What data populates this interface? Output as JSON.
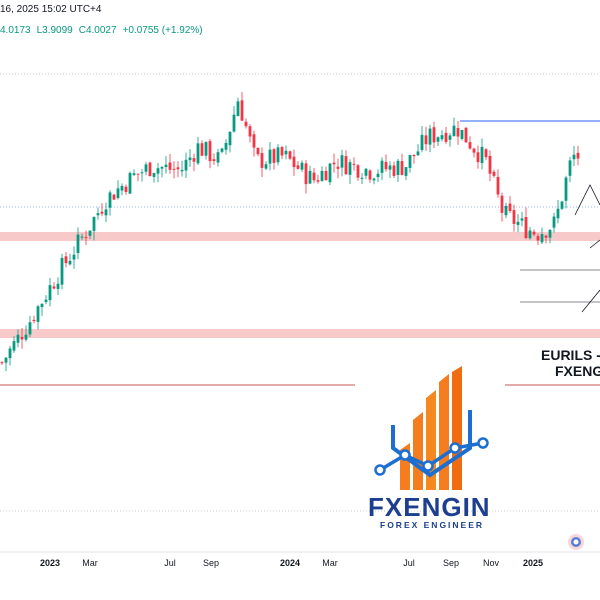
{
  "header": {
    "datetime": "16, 2025 15:02 UTC+4",
    "high": "4.0173",
    "low": "L3.9099",
    "close": "C4.0027",
    "change": "+0.0755 (+1.92%)"
  },
  "annotation": {
    "pair_line1": "EURILS -",
    "pair_line2": "FXENG"
  },
  "logo": {
    "brand": "FXENGIN",
    "tagline": "FOREX ENGINEER"
  },
  "colors": {
    "up": "#089981",
    "down": "#f23645",
    "zone": "#f7c9c9",
    "blue_line": "#2962ff",
    "red_line": "#b71c1c",
    "logo_orange": "#f57c1f",
    "logo_blue": "#1c6fd1",
    "logo_navy": "#1c3f8f"
  },
  "chart_data": {
    "type": "candlestick",
    "x_labels": [
      {
        "text": "2023",
        "bold": true
      },
      {
        "text": "Mar",
        "bold": false
      },
      {
        "text": "Jul",
        "bold": false
      },
      {
        "text": "Sep",
        "bold": false
      },
      {
        "text": "2024",
        "bold": true
      },
      {
        "text": "Mar",
        "bold": false
      },
      {
        "text": "Jul",
        "bold": false
      },
      {
        "text": "Sep",
        "bold": false
      },
      {
        "text": "Nov",
        "bold": false
      },
      {
        "text": "2025",
        "bold": true
      }
    ],
    "close_path": [
      {
        "t": 0.0,
        "p": 3.57
      },
      {
        "t": 0.05,
        "p": 3.66
      },
      {
        "t": 0.1,
        "p": 3.76
      },
      {
        "t": 0.15,
        "p": 3.85
      },
      {
        "t": 0.18,
        "p": 3.91
      },
      {
        "t": 0.23,
        "p": 3.96
      },
      {
        "t": 0.26,
        "p": 3.98
      },
      {
        "t": 0.31,
        "p": 3.97
      },
      {
        "t": 0.34,
        "p": 4.02
      },
      {
        "t": 0.38,
        "p": 3.99
      },
      {
        "t": 0.41,
        "p": 4.12
      },
      {
        "t": 0.44,
        "p": 3.99
      },
      {
        "t": 0.49,
        "p": 4.0
      },
      {
        "t": 0.54,
        "p": 3.95
      },
      {
        "t": 0.58,
        "p": 3.99
      },
      {
        "t": 0.64,
        "p": 3.97
      },
      {
        "t": 0.7,
        "p": 3.98
      },
      {
        "t": 0.74,
        "p": 4.04
      },
      {
        "t": 0.79,
        "p": 4.06
      },
      {
        "t": 0.84,
        "p": 3.99
      },
      {
        "t": 0.87,
        "p": 3.88
      },
      {
        "t": 0.91,
        "p": 3.85
      },
      {
        "t": 0.93,
        "p": 3.84
      },
      {
        "t": 0.96,
        "p": 3.86
      },
      {
        "t": 0.99,
        "p": 4.0
      }
    ],
    "price_range": [
      3.45,
      4.18
    ]
  }
}
